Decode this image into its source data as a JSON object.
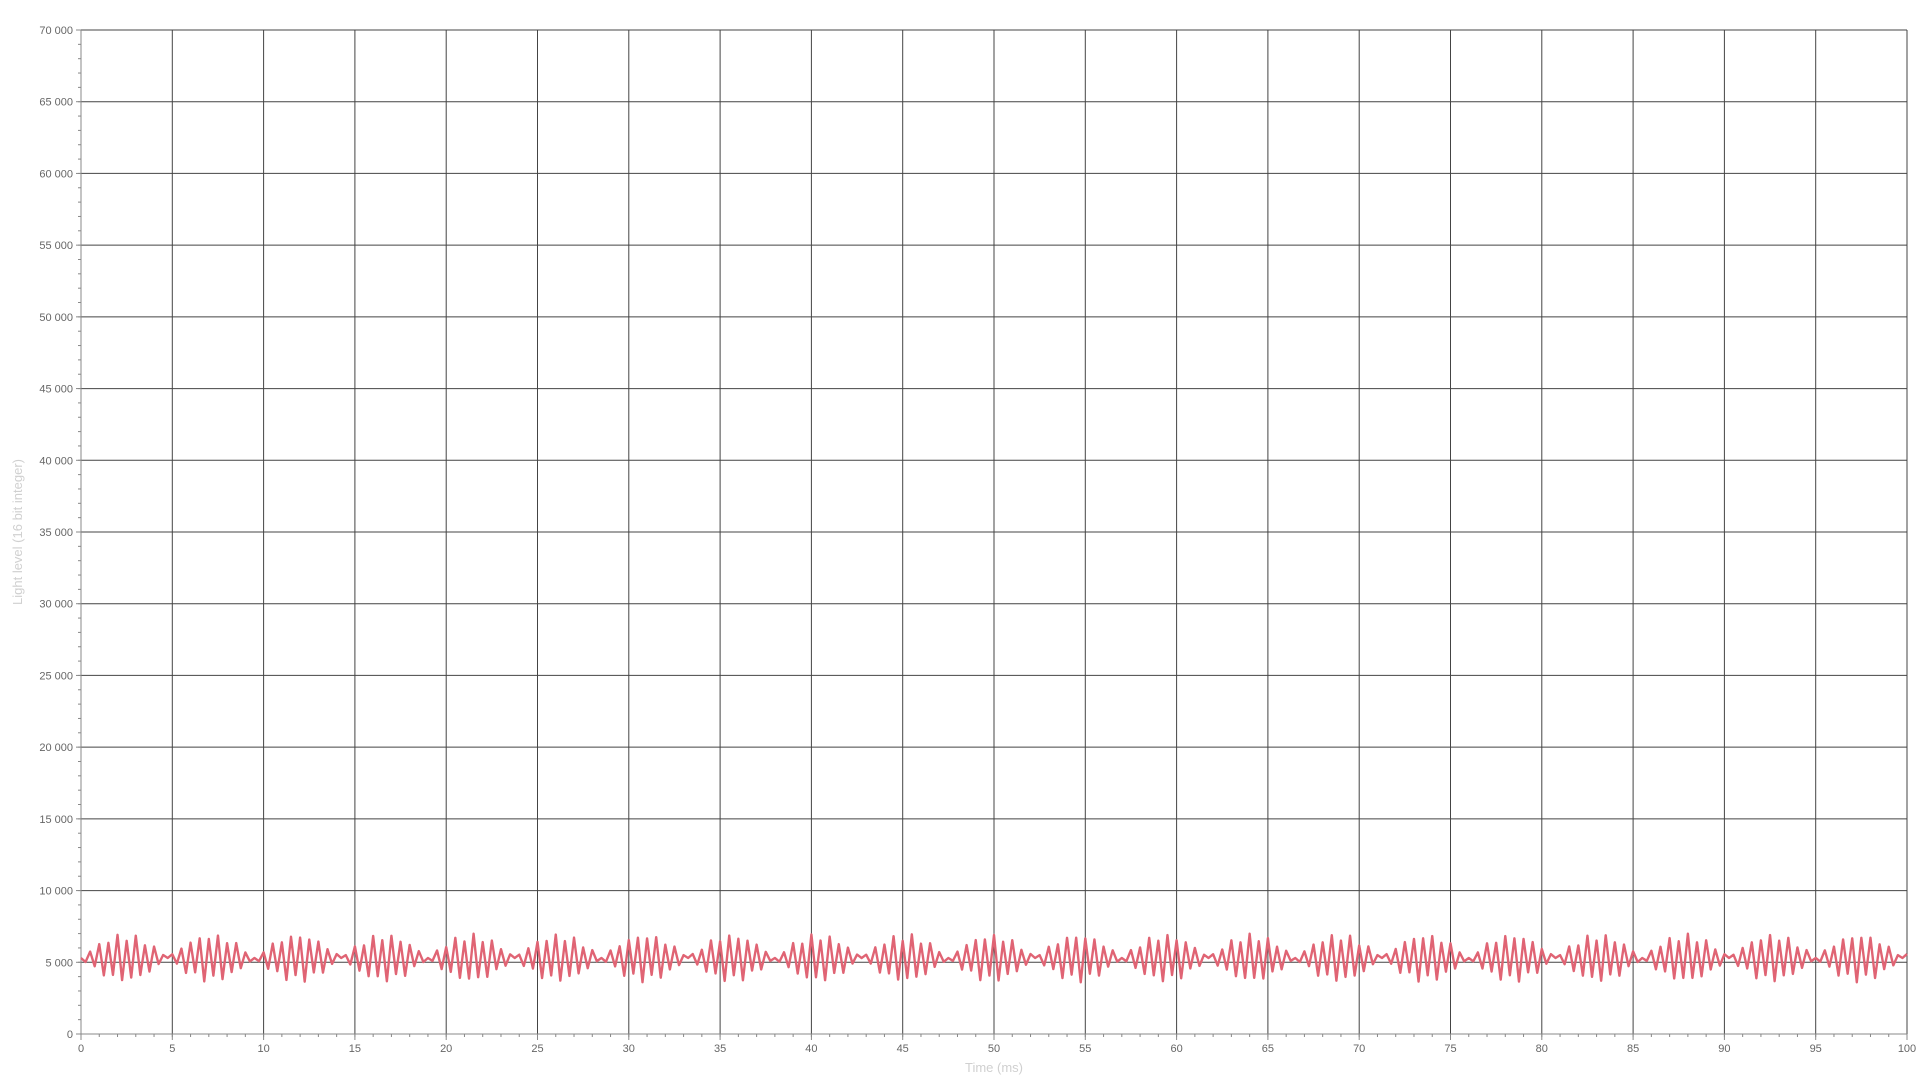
{
  "chart_data": {
    "type": "line",
    "title": "",
    "xlabel": "Time (ms)",
    "ylabel": "Light level (16 bit integer)",
    "xlim": [
      0,
      100
    ],
    "ylim": [
      0,
      70000
    ],
    "x_ticks": [
      0,
      5,
      10,
      15,
      20,
      25,
      30,
      35,
      40,
      45,
      50,
      55,
      60,
      65,
      70,
      75,
      80,
      85,
      90,
      95,
      100
    ],
    "x_tick_labels": [
      "0",
      "5",
      "10",
      "15",
      "20",
      "25",
      "30",
      "35",
      "40",
      "45",
      "50",
      "55",
      "60",
      "65",
      "70",
      "75",
      "80",
      "85",
      "90",
      "95",
      "100"
    ],
    "y_ticks": [
      0,
      5000,
      10000,
      15000,
      20000,
      25000,
      30000,
      35000,
      40000,
      45000,
      50000,
      55000,
      60000,
      65000,
      70000
    ],
    "y_tick_labels": [
      "0",
      "5 000",
      "10 000",
      "15 000",
      "20 000",
      "25 000",
      "30 000",
      "35 000",
      "40 000",
      "45 000",
      "50 000",
      "55 000",
      "60 000",
      "65 000",
      "70 000"
    ],
    "grid": true,
    "legend": "none",
    "colors": {
      "series": "#e06474",
      "grid": "#444444",
      "axis": "#888888",
      "tick_label": "#666666",
      "axis_title": "#d0d0d0"
    },
    "series": [
      {
        "sampling_interval_ms": 0.25,
        "baseline": 5300,
        "max_amplitude": 1700,
        "carrier_period_ms": 0.5,
        "envelope_period_ms": 4.75,
        "x_range": [
          0,
          100
        ]
      }
    ]
  }
}
